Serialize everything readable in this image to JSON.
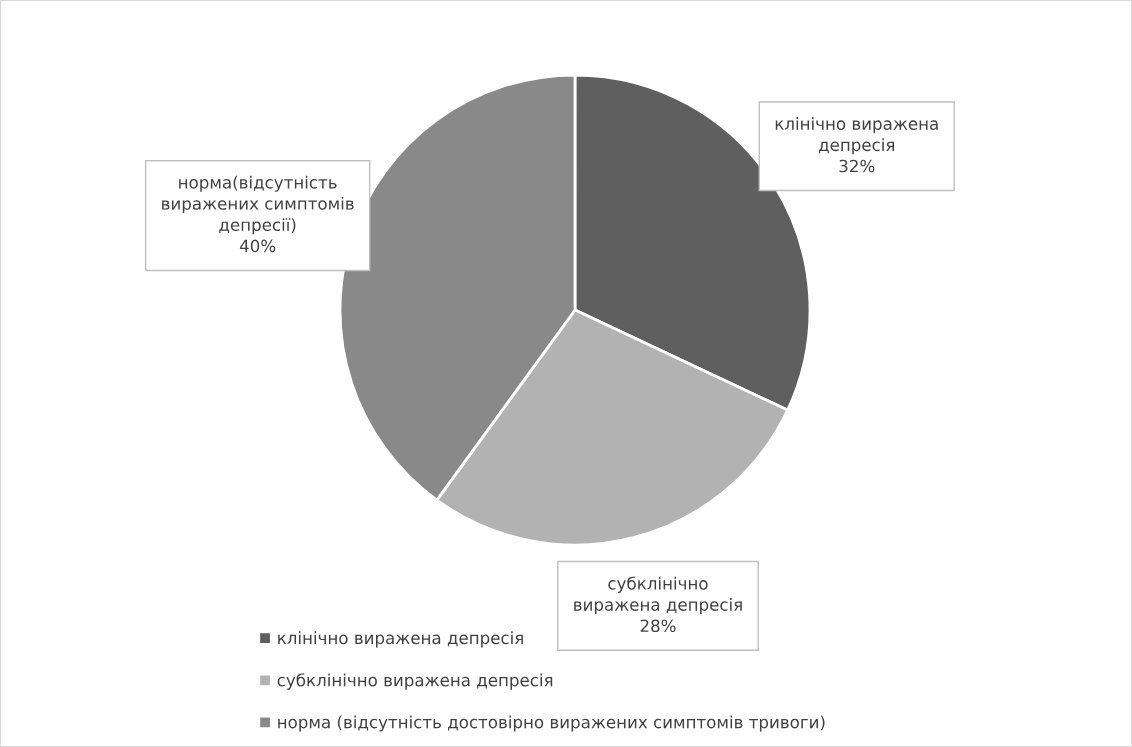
{
  "chart_data": {
    "type": "pie",
    "categories": [
      "клінічно виражена депресія",
      "субклінічно виражена депресія",
      "норма (відсутність достовірно виражених симптомів тривоги)"
    ],
    "values": [
      32,
      28,
      40
    ],
    "colors": [
      "#5f5f5f",
      "#b2b2b2",
      "#898989"
    ],
    "value_labels": [
      "клінічно виражена\nдепресія\n32%",
      "субклінічно\nвиражена депресія\n28%",
      "норма(відсутність\nвиражених симптомів\nдепресії)\n40%"
    ],
    "legend": "bottom"
  }
}
